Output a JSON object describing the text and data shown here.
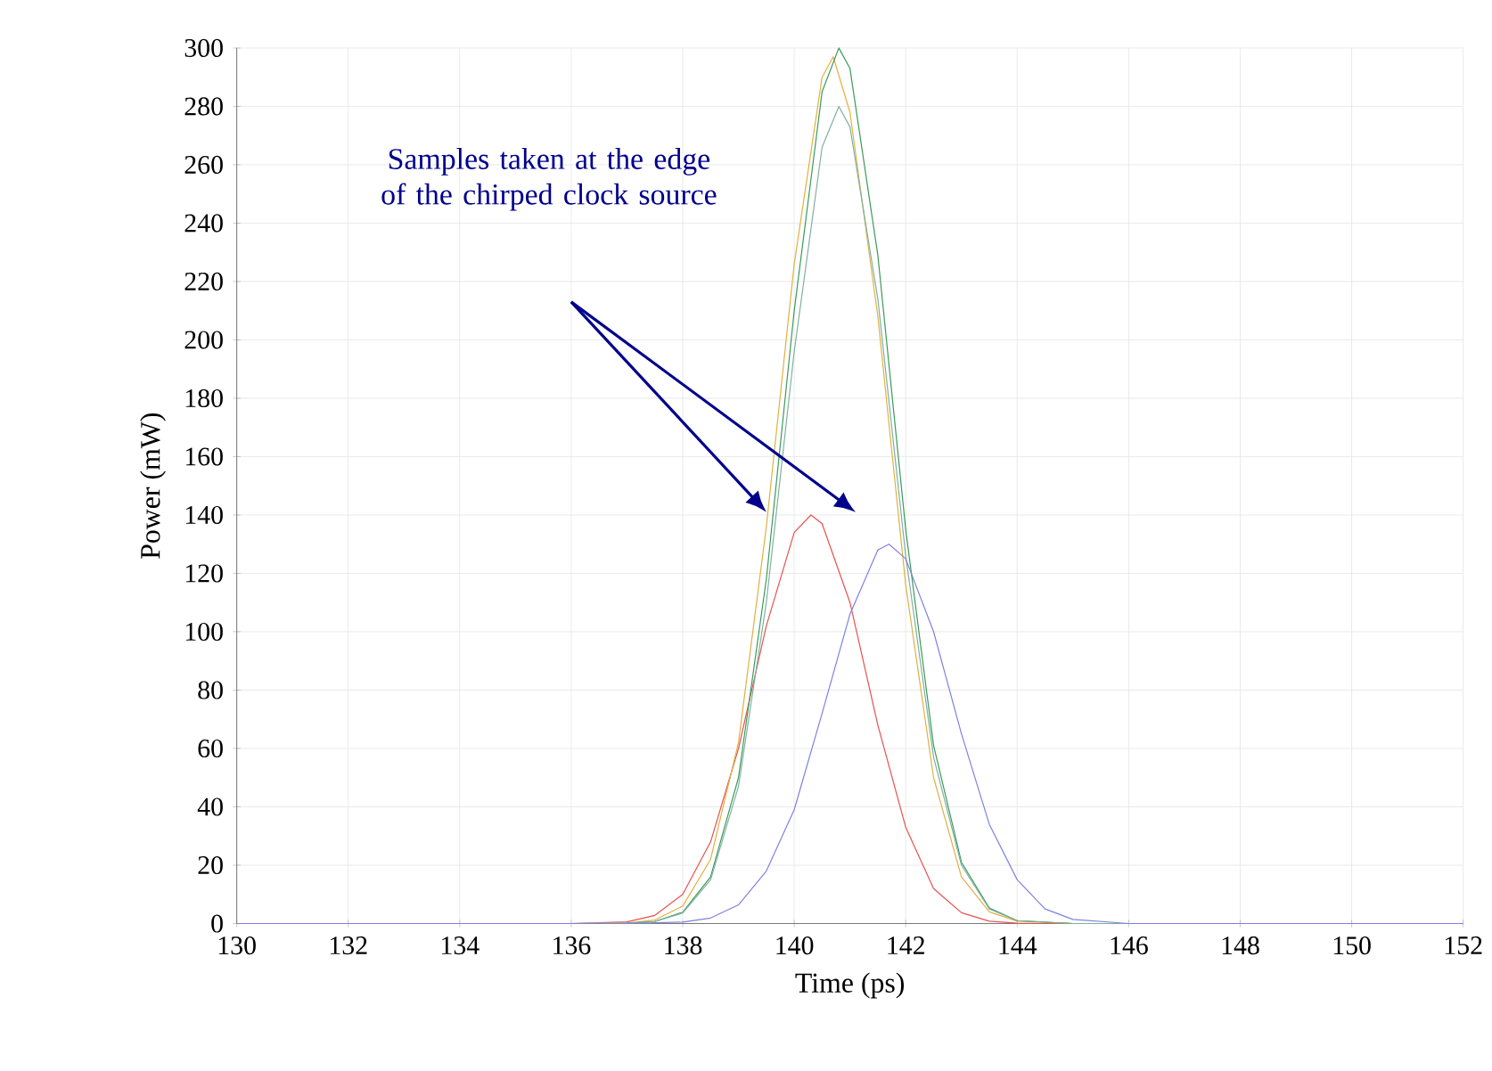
{
  "chart_data": {
    "type": "line",
    "xlabel": "Time (ps)",
    "ylabel": "Power (mW)",
    "annotations": [
      "Samples taken at the edge of the chirped clock source"
    ],
    "xlim": [
      130,
      152
    ],
    "ylim": [
      0,
      300
    ],
    "xticks": [
      130,
      132,
      134,
      136,
      138,
      140,
      142,
      144,
      146,
      148,
      150,
      152
    ],
    "yticks": [
      0,
      20,
      40,
      60,
      80,
      100,
      120,
      140,
      160,
      180,
      200,
      220,
      240,
      260,
      280,
      300
    ],
    "grid": true,
    "marker": "none",
    "line_style": "solid",
    "series": [
      {
        "color": "#e8504f",
        "x": [
          130,
          136,
          137,
          137.5,
          138,
          138.5,
          139,
          139.5,
          140,
          140.3,
          140.5,
          141,
          141.5,
          142,
          142.5,
          143,
          143.5,
          144,
          145,
          152
        ],
        "values": [
          0,
          0,
          0.6,
          2.8,
          10,
          28,
          60,
          102,
          134,
          140,
          137,
          110,
          68,
          33,
          12,
          3.7,
          0.8,
          0.1,
          0,
          0
        ]
      },
      {
        "color": "#e0b040",
        "x": [
          130,
          136,
          137,
          137.5,
          138,
          138.5,
          139,
          139.5,
          140,
          140.5,
          140.7,
          141,
          141.5,
          142,
          142.5,
          143,
          143.5,
          144,
          145,
          152
        ],
        "values": [
          0,
          0,
          0.2,
          1.2,
          6,
          22,
          62,
          136,
          226,
          290,
          297,
          278,
          208,
          116,
          50,
          16,
          4,
          0.8,
          0,
          0
        ]
      },
      {
        "color": "#3a9a5a",
        "x": [
          130,
          136,
          137,
          137.5,
          138,
          138.5,
          139,
          139.5,
          140,
          140.5,
          140.8,
          141,
          141.5,
          142,
          142.5,
          143,
          143.5,
          144,
          145,
          152
        ],
        "values": [
          0,
          0,
          0.1,
          0.7,
          3.9,
          16,
          50,
          118,
          210,
          285,
          300,
          293,
          229,
          135,
          61,
          21,
          5.3,
          1,
          0,
          0
        ]
      },
      {
        "color": "#7fb0a0",
        "x": [
          130,
          136,
          137,
          137.5,
          138,
          138.5,
          139,
          139.5,
          140,
          140.5,
          140.8,
          141,
          141.5,
          142,
          142.5,
          143,
          143.5,
          144,
          145,
          152
        ],
        "values": [
          0,
          0,
          0.1,
          0.7,
          3.6,
          15,
          47,
          110,
          196,
          266,
          280,
          273,
          214,
          126,
          57,
          20,
          5,
          1,
          0,
          0
        ]
      },
      {
        "color": "#8080e0",
        "x": [
          130,
          137,
          138,
          138.5,
          139,
          139.5,
          140,
          140.5,
          141,
          141.5,
          141.7,
          142,
          142.5,
          143,
          143.5,
          144,
          144.5,
          145,
          146,
          152
        ],
        "values": [
          0,
          0,
          0.5,
          1.9,
          6.4,
          18,
          39,
          72,
          106,
          128,
          130,
          125,
          100,
          65,
          34,
          15,
          5,
          1.4,
          0,
          0
        ]
      }
    ]
  }
}
